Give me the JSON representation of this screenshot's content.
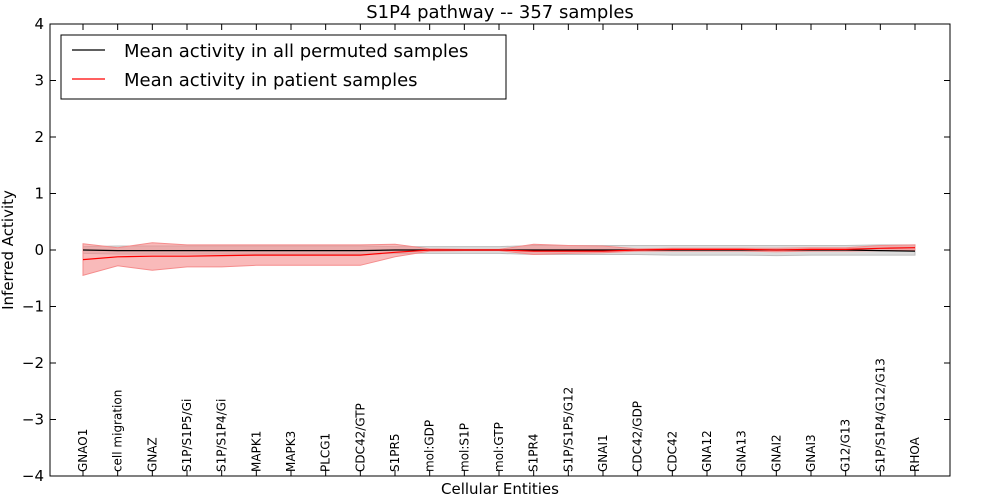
{
  "chart_data": {
    "type": "line",
    "title": "S1P4 pathway -- 357 samples",
    "xlabel": "Cellular Entities",
    "ylabel": "Inferred Activity",
    "ylim": [
      -4,
      4
    ],
    "yticks": [
      -4,
      -3,
      -2,
      -1,
      0,
      1,
      2,
      3,
      4
    ],
    "ytick_labels": [
      "−4",
      "−3",
      "−2",
      "−1",
      "0",
      "1",
      "2",
      "3",
      "4"
    ],
    "categories": [
      "GNAO1",
      "cell migration",
      "GNAZ",
      "S1P/S1P5/Gi",
      "S1P/S1P4/Gi",
      "MAPK1",
      "MAPK3",
      "PLCG1",
      "CDC42/GTP",
      "S1PR5",
      "mol:GDP",
      "mol:S1P",
      "mol:GTP",
      "S1PR4",
      "S1P/S1P5/G12",
      "GNAI1",
      "CDC42/GDP",
      "CDC42",
      "GNA12",
      "GNA13",
      "GNAI2",
      "GNAI3",
      "G12/G13",
      "S1P/S1P4/G12/G13",
      "RHOA"
    ],
    "legend": {
      "position": "top-left"
    },
    "series": [
      {
        "name": "Mean activity in all permuted samples",
        "color": "#000000",
        "band_color": "#bfbfbf",
        "values": [
          0.0,
          -0.01,
          -0.01,
          -0.01,
          -0.01,
          -0.01,
          -0.01,
          -0.01,
          -0.01,
          0.0,
          0.0,
          0.0,
          0.0,
          0.0,
          0.0,
          0.0,
          0.0,
          0.0,
          0.0,
          0.0,
          0.0,
          0.0,
          0.0,
          -0.01,
          -0.02
        ],
        "lower": [
          -0.06,
          -0.07,
          -0.07,
          -0.07,
          -0.07,
          -0.07,
          -0.07,
          -0.07,
          -0.07,
          -0.06,
          -0.06,
          -0.06,
          -0.06,
          -0.08,
          -0.08,
          -0.08,
          -0.08,
          -0.09,
          -0.09,
          -0.09,
          -0.1,
          -0.09,
          -0.09,
          -0.09,
          -0.09
        ],
        "upper": [
          0.06,
          0.07,
          0.07,
          0.07,
          0.07,
          0.07,
          0.07,
          0.07,
          0.07,
          0.06,
          0.06,
          0.06,
          0.06,
          0.08,
          0.08,
          0.08,
          0.08,
          0.08,
          0.08,
          0.08,
          0.08,
          0.08,
          0.08,
          0.09,
          0.09
        ]
      },
      {
        "name": "Mean activity in patient samples",
        "color": "#ff0000",
        "band_color": "#f58c8c",
        "values": [
          -0.17,
          -0.12,
          -0.11,
          -0.11,
          -0.1,
          -0.09,
          -0.09,
          -0.09,
          -0.09,
          -0.04,
          0.0,
          0.0,
          0.0,
          -0.02,
          -0.02,
          -0.02,
          0.0,
          0.01,
          0.01,
          0.01,
          0.0,
          0.01,
          0.01,
          0.03,
          0.04
        ],
        "lower": [
          -0.45,
          -0.28,
          -0.36,
          -0.3,
          -0.3,
          -0.27,
          -0.27,
          -0.27,
          -0.27,
          -0.12,
          -0.02,
          -0.01,
          -0.01,
          -0.08,
          -0.06,
          -0.05,
          -0.02,
          -0.02,
          -0.02,
          -0.02,
          -0.03,
          -0.02,
          -0.02,
          -0.01,
          0.0
        ],
        "upper": [
          0.11,
          0.04,
          0.13,
          0.09,
          0.09,
          0.09,
          0.09,
          0.09,
          0.09,
          0.1,
          0.02,
          0.01,
          0.01,
          0.1,
          0.08,
          0.07,
          0.02,
          0.03,
          0.03,
          0.03,
          0.03,
          0.04,
          0.04,
          0.08,
          0.09
        ]
      }
    ]
  }
}
